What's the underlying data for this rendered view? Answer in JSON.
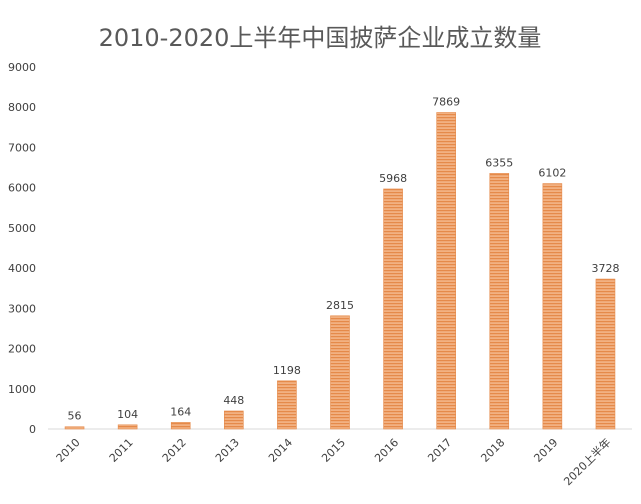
{
  "chart_data": {
    "type": "bar",
    "title": "2010-2020上半年中国披萨企业成立数量",
    "categories": [
      "2010",
      "2011",
      "2012",
      "2013",
      "2014",
      "2015",
      "2016",
      "2017",
      "2018",
      "2019",
      "2020上半年"
    ],
    "values": [
      56,
      104,
      164,
      448,
      1198,
      2815,
      5968,
      7869,
      6355,
      6102,
      3728
    ],
    "data_labels": [
      "56",
      "104",
      "164",
      "448",
      "1198",
      "2815",
      "5968",
      "7869",
      "6355",
      "6102",
      "3728"
    ],
    "ylim": [
      0,
      9000
    ],
    "yticks": [
      "0",
      "1000",
      "2000",
      "3000",
      "4000",
      "5000",
      "6000",
      "7000",
      "8000",
      "9000"
    ],
    "grid": false,
    "bar_color": "#f0a36b",
    "bar_stripe_color": "#e58a4a"
  }
}
